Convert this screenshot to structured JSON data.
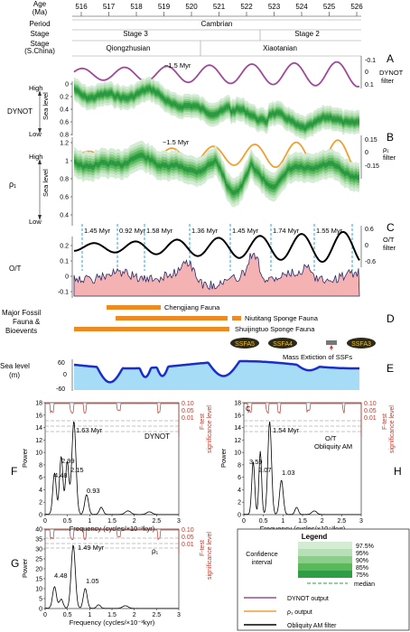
{
  "header": {
    "age_label": [
      "Age",
      "(Ma)"
    ],
    "age_ticks": [
      "516",
      "517",
      "518",
      "519",
      "520",
      "521",
      "522",
      "523",
      "524",
      "525",
      "526"
    ],
    "period_label": "Period",
    "period_value": "Cambrian",
    "stage_label": "Stage",
    "stage_values": [
      "Stage 3",
      "Stage 2"
    ],
    "stage_sc_label": [
      "Stage",
      "(S.China)"
    ],
    "stage_sc_values": [
      "Qiongzhusian",
      "Xiaotanian"
    ]
  },
  "panels": {
    "A": {
      "letter": "A",
      "annotation": "~1.5 Myr",
      "right_label": [
        "DYNOT",
        "filter"
      ],
      "right_ticks": [
        "-0.1",
        "0",
        "0.1"
      ],
      "color": "#a0489a"
    },
    "B": {
      "letter": "B",
      "annotation": "~1.5 Myr",
      "right_label": [
        "ρ₁",
        "filter"
      ],
      "right_ticks": [
        "0.15",
        "0",
        "-0.15"
      ],
      "color": "#f0a030"
    },
    "C": {
      "letter": "C",
      "right_label": [
        "O/T",
        "filter"
      ],
      "right_ticks": [
        "0.6",
        "0",
        "-0.6"
      ],
      "periods": [
        "1.45 Myr",
        "0.92 Myr",
        "1.58 Myr",
        "1.36 Myr",
        "1.45 Myr",
        "1.74 Myr",
        "1.55 Myr"
      ]
    },
    "D": {
      "letter": "D"
    },
    "E": {
      "letter": "E"
    }
  },
  "dynot": {
    "label": "DYNOT",
    "high": "High",
    "low": "Low",
    "sea_level": "Sea level",
    "ticks": [
      "0",
      "0.2",
      "0.4",
      "0.6",
      "0.8"
    ]
  },
  "rho": {
    "label": "ρ₁",
    "high": "High",
    "low": "Low",
    "sea_level": "Sea level",
    "ticks": [
      "1.2",
      "1",
      "0.8",
      "0.6",
      "0.4"
    ]
  },
  "ot": {
    "label": "O/T",
    "ticks": [
      "0.2",
      "0.1",
      "0",
      "-0.1"
    ]
  },
  "fauna": {
    "title": [
      "Major Fossil",
      "Fauna &",
      "Bioevents"
    ],
    "chengjiang": "Chengjiang Fauna",
    "niutitang": "Niutitang Sponge Fauna",
    "shuijingtuo": "Shuijingtuo Sponge Fauna",
    "ssfa": [
      "SSFA5",
      "SSFA4",
      "SSFA3"
    ],
    "extinction": "Mass Extiction of SSFs",
    "bar_color": "#ee8a22"
  },
  "sealevel": {
    "label": [
      "Sea level",
      "(m)"
    ],
    "ticks": [
      "60",
      "0",
      "-60"
    ]
  },
  "spectra": {
    "F": {
      "letter": "F",
      "name": "DYNOT",
      "yticks": [
        "0",
        "2",
        "4",
        "6",
        "8",
        "10",
        "12",
        "14",
        "16",
        "18"
      ],
      "peaks": [
        "4.48",
        "2.99",
        "2.15",
        "1.63 Myr",
        "0.93"
      ],
      "sig": [
        "0.10",
        "0.05",
        "0.01"
      ]
    },
    "H": {
      "letter": "H",
      "corner": "C",
      "name": [
        "O/T",
        "Obliquity AM"
      ],
      "yticks": [
        "0",
        "2",
        "4",
        "6",
        "8",
        "10",
        "12",
        "14",
        "16",
        "18"
      ],
      "peaks": [
        "3.59",
        "2.07",
        "1.54 Myr",
        "1.03"
      ],
      "sig": [
        "0.10",
        "0.05",
        "0.01"
      ]
    },
    "G": {
      "letter": "G",
      "name": "ρ₁",
      "yticks": [
        "0",
        "5",
        "10",
        "15",
        "20",
        "25",
        "30",
        "35",
        "40"
      ],
      "peaks": [
        "4.48",
        "1.49 Myr",
        "1.05"
      ],
      "sig": [
        "0.10",
        "0.05",
        "0.01"
      ]
    },
    "xticks": [
      "0",
      "0.5",
      "1",
      "1.5",
      "2",
      "2.5",
      "3"
    ],
    "xlabel": "Frequency (cycles/×10⁻³kyr)",
    "ylabel": "Power",
    "ftest": [
      "F-test",
      "significance level"
    ]
  },
  "legend": {
    "title": "Legend",
    "ci_label": [
      "Confidence",
      "interval"
    ],
    "ci": [
      "97.5%",
      "95%",
      "90%",
      "85%",
      "75%"
    ],
    "median": "median",
    "lines": [
      "DYNOT output",
      "ρ₁ output",
      "Obliquity AM filter"
    ]
  }
}
